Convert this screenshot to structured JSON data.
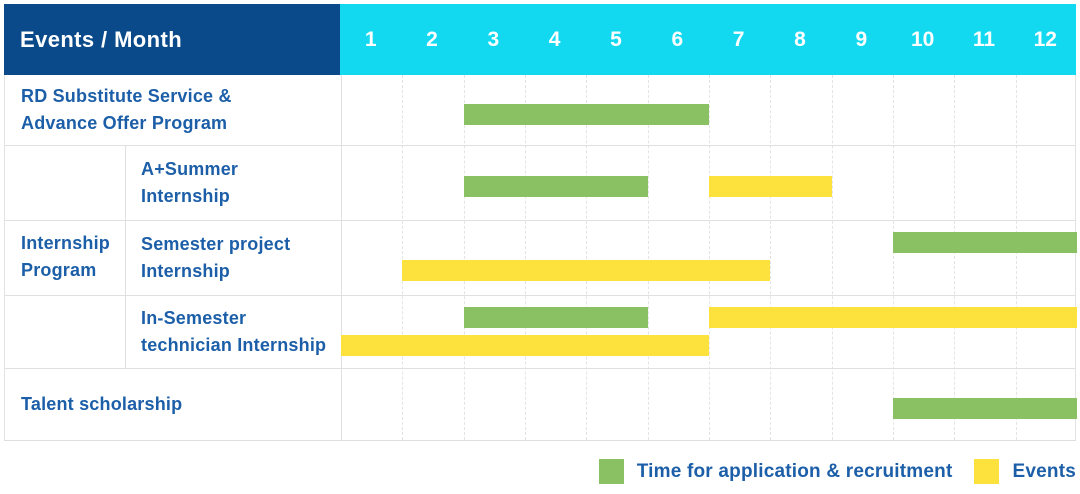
{
  "colors": {
    "header_bg": "#0B4A8A",
    "months_bg": "#12D9F0",
    "header_text": "#FFFFFF",
    "label_text": "#1C5FA8",
    "application_bar": "#8AC162",
    "event_bar": "#FDE23E"
  },
  "header": {
    "events_label": "Events / Month",
    "months": [
      "1",
      "2",
      "3",
      "4",
      "5",
      "6",
      "7",
      "8",
      "9",
      "10",
      "11",
      "12"
    ]
  },
  "chart_data": {
    "type": "bar",
    "subtype": "gantt-month-table",
    "x_unit": "month",
    "x_range": [
      1,
      12
    ],
    "x_ticks": [
      "1",
      "2",
      "3",
      "4",
      "5",
      "6",
      "7",
      "8",
      "9",
      "10",
      "11",
      "12"
    ],
    "grid": "on",
    "legend_position": "bottom-right",
    "groups": [
      {
        "label": "Internship Program",
        "label_lines": [
          "Internship",
          "Program"
        ],
        "start_row": 1,
        "end_row": 3
      }
    ],
    "rows": [
      {
        "label": "RD Substitute Service & Advance Offer Program",
        "label_lines": [
          "RD Substitute Service &",
          "Advance Offer Program"
        ],
        "in_group": false,
        "bars": [
          {
            "kind": "application",
            "start_month": 3,
            "end_month": 6,
            "line": "center"
          }
        ]
      },
      {
        "label": "A+Summer Internship",
        "label_lines": [
          "A+Summer",
          "Internship"
        ],
        "in_group": true,
        "bars": [
          {
            "kind": "application",
            "start_month": 3,
            "end_month": 5,
            "line": "center"
          },
          {
            "kind": "event",
            "start_month": 7,
            "end_month": 8,
            "line": "center"
          }
        ]
      },
      {
        "label": "Semester project Internship",
        "label_lines": [
          "Semester project",
          "Internship"
        ],
        "in_group": true,
        "bars": [
          {
            "kind": "application",
            "start_month": 10,
            "end_month": 12,
            "line": "upper"
          },
          {
            "kind": "event",
            "start_month": 2,
            "end_month": 7,
            "line": "lower"
          }
        ]
      },
      {
        "label": "In-Semester technician Internship",
        "label_lines": [
          "In-Semester",
          "technician Internship"
        ],
        "in_group": true,
        "bars": [
          {
            "kind": "application",
            "start_month": 3,
            "end_month": 5,
            "line": "upper"
          },
          {
            "kind": "event",
            "start_month": 7,
            "end_month": 12,
            "line": "upper"
          },
          {
            "kind": "event",
            "start_month": 1,
            "end_month": 6,
            "line": "lower"
          }
        ]
      },
      {
        "label": "Talent scholarship",
        "label_lines": [
          "Talent scholarship"
        ],
        "in_group": false,
        "bars": [
          {
            "kind": "application",
            "start_month": 10,
            "end_month": 12,
            "line": "center"
          }
        ]
      }
    ]
  },
  "legend": {
    "items": [
      {
        "label": "Time for application & recruitment",
        "kind": "application"
      },
      {
        "label": "Events",
        "kind": "event"
      }
    ]
  }
}
